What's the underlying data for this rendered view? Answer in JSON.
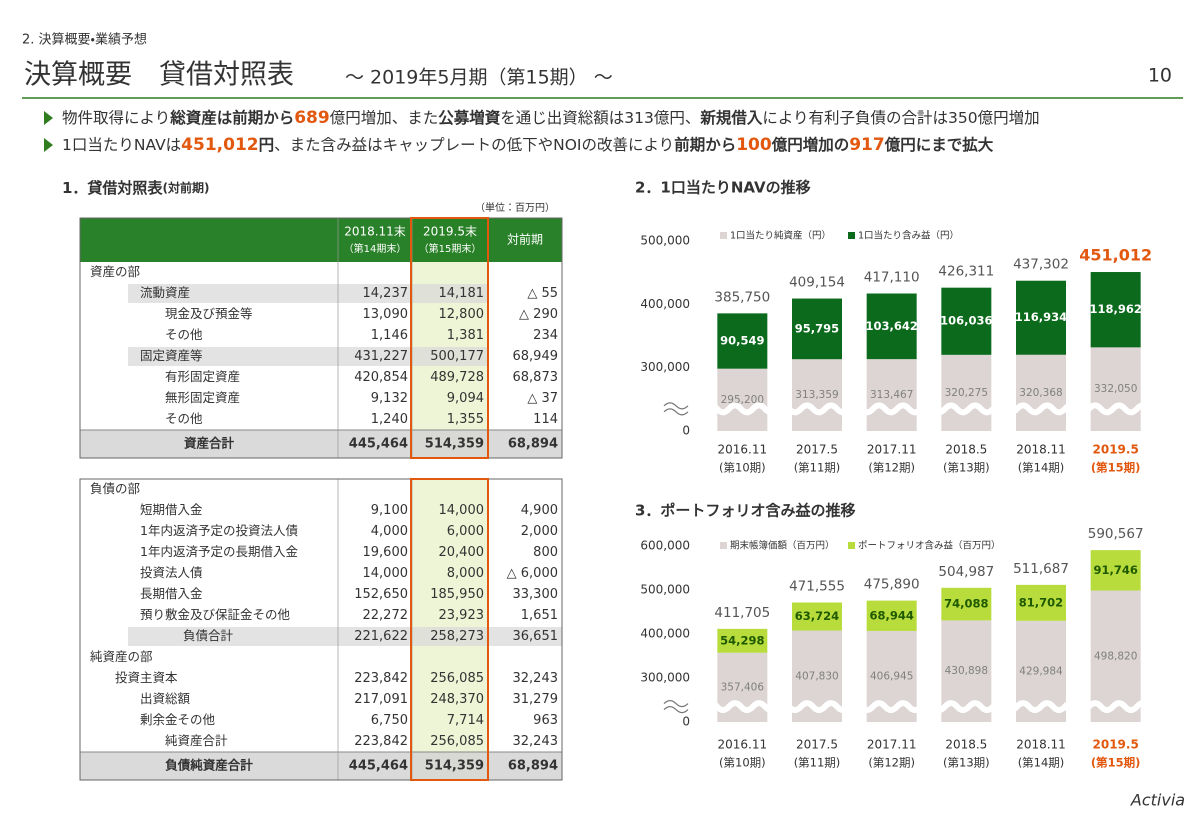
{
  "header": {
    "section": "2. 決算概要・業績予想",
    "title": "決算概要　貸借対照表",
    "subtitle": "～ 2019年5月期（第15期） ～",
    "page": "10"
  },
  "bullets": [
    [
      {
        "text": "物件取得により",
        "style": "normal"
      },
      {
        "text": "総資産は前期から",
        "style": "bold"
      },
      {
        "text": "689",
        "style": "accent"
      },
      {
        "text": "億円増加、また",
        "style": "normal"
      },
      {
        "text": "公募増資",
        "style": "bold"
      },
      {
        "text": "を通じ出資総額は313億円、",
        "style": "normal"
      },
      {
        "text": "新規借入",
        "style": "bold"
      },
      {
        "text": "により有利子負債の合計は350億円増加",
        "style": "normal"
      }
    ],
    [
      {
        "text": "1口当たりNAVは",
        "style": "normal"
      },
      {
        "text": "451,012",
        "style": "accent"
      },
      {
        "text": "円",
        "style": "bold"
      },
      {
        "text": "、また含み益はキャップレートの低下やNOIの改善により",
        "style": "normal"
      },
      {
        "text": "前期から",
        "style": "bold"
      },
      {
        "text": "100",
        "style": "accent"
      },
      {
        "text": "億円増加の",
        "style": "bold"
      },
      {
        "text": "917",
        "style": "accent"
      },
      {
        "text": "億円にまで拡大",
        "style": "bold"
      }
    ]
  ],
  "table": {
    "title": "1．貸借対照表",
    "title_note": "(対前期)",
    "unit": "（単位：百万円）",
    "columns": [
      [
        "2018.11末",
        "（第14期末）"
      ],
      [
        "2019.5末",
        "（第15期末）"
      ],
      [
        "対前期"
      ]
    ],
    "blocks": [
      [
        {
          "label": "資産の部",
          "level": 0,
          "style": "section"
        },
        {
          "label": "流動資産",
          "level": 2,
          "style": "shade",
          "cells": [
            "14,237",
            "14,181",
            "△ 55"
          ]
        },
        {
          "label": "現金及び預金等",
          "level": 3,
          "style": "plain",
          "cells": [
            "13,090",
            "12,800",
            "△ 290"
          ]
        },
        {
          "label": "その他",
          "level": 3,
          "style": "plain",
          "cells": [
            "1,146",
            "1,381",
            "234"
          ]
        },
        {
          "label": "固定資産等",
          "level": 2,
          "style": "shade",
          "cells": [
            "431,227",
            "500,177",
            "68,949"
          ]
        },
        {
          "label": "有形固定資産",
          "level": 3,
          "style": "plain",
          "cells": [
            "420,854",
            "489,728",
            "68,873"
          ]
        },
        {
          "label": "無形固定資産",
          "level": 3,
          "style": "plain",
          "cells": [
            "9,132",
            "9,094",
            "△ 37"
          ]
        },
        {
          "label": "その他",
          "level": 3,
          "style": "plain",
          "cells": [
            "1,240",
            "1,355",
            "114"
          ]
        },
        {
          "label": "資産合計",
          "level": 0,
          "style": "total",
          "cells": [
            "445,464",
            "514,359",
            "68,894"
          ]
        }
      ],
      [
        {
          "label": "負債の部",
          "level": 0,
          "style": "section"
        },
        {
          "label": "短期借入金",
          "level": 2,
          "style": "plain",
          "cells": [
            "9,100",
            "14,000",
            "4,900"
          ]
        },
        {
          "label": "1年内返済予定の投資法人債",
          "level": 2,
          "style": "plain",
          "cells": [
            "4,000",
            "6,000",
            "2,000"
          ]
        },
        {
          "label": "1年内返済予定の長期借入金",
          "level": 2,
          "style": "plain",
          "cells": [
            "19,600",
            "20,400",
            "800"
          ]
        },
        {
          "label": "投資法人債",
          "level": 2,
          "style": "plain",
          "cells": [
            "14,000",
            "8,000",
            "△ 6,000"
          ]
        },
        {
          "label": "長期借入金",
          "level": 2,
          "style": "plain",
          "cells": [
            "152,650",
            "185,950",
            "33,300"
          ]
        },
        {
          "label": "預り敷金及び保証金その他",
          "level": 2,
          "style": "plain",
          "cells": [
            "22,272",
            "23,923",
            "1,651"
          ]
        },
        {
          "label": "負債合計",
          "level": 3,
          "style": "subtotal",
          "cells": [
            "221,622",
            "258,273",
            "36,651"
          ]
        },
        {
          "label": "純資産の部",
          "level": 0,
          "style": "section"
        },
        {
          "label": "投資主資本",
          "level": 1,
          "style": "plain",
          "cells": [
            "223,842",
            "256,085",
            "32,243"
          ]
        },
        {
          "label": "出資総額",
          "level": 2,
          "style": "plain",
          "cells": [
            "217,091",
            "248,370",
            "31,279"
          ]
        },
        {
          "label": "剰余金その他",
          "level": 2,
          "style": "plain",
          "cells": [
            "6,750",
            "7,714",
            "963"
          ]
        },
        {
          "label": "純資産合計",
          "level": 3,
          "style": "plain",
          "cells": [
            "223,842",
            "256,085",
            "32,243"
          ]
        },
        {
          "label": "負債純資産合計",
          "level": 0,
          "style": "total",
          "cells": [
            "445,464",
            "514,359",
            "68,894"
          ]
        }
      ]
    ]
  },
  "chart_data": [
    {
      "type": "bar",
      "stacked": true,
      "title": "2．1口当たりNAVの推移",
      "categories": [
        "2016.11",
        "2017.5",
        "2017.11",
        "2018.5",
        "2018.11",
        "2019.5"
      ],
      "category_sublabels": [
        "(第10期)",
        "(第11期)",
        "(第12期)",
        "(第13期)",
        "(第14期)",
        "(第15期)"
      ],
      "category_colors": [
        "#333333",
        "#333333",
        "#333333",
        "#333333",
        "#333333",
        "#e2580f"
      ],
      "series": [
        {
          "name": "1口当たり純資産（円）",
          "color": "#dcd5d3",
          "label_color": "#808080",
          "values": [
            295200,
            313359,
            313467,
            320275,
            320368,
            332050
          ],
          "value_labels": [
            "295,200",
            "313,359",
            "313,467",
            "320,275",
            "320,368",
            "332,050"
          ]
        },
        {
          "name": "1口当たり含み益（円）",
          "color": "#0b6a1c",
          "label_color": "#ffffff",
          "values": [
            90549,
            95795,
            103642,
            106036,
            116934,
            118962
          ],
          "value_labels": [
            "90,549",
            "95,795",
            "103,642",
            "106,036",
            "116,934",
            "118,962"
          ]
        }
      ],
      "totals": [
        385750,
        409154,
        417110,
        426311,
        437302,
        451012
      ],
      "total_labels": [
        "385,750",
        "409,154",
        "417,110",
        "426,311",
        "437,302",
        "451,012"
      ],
      "total_colors": [
        "#555555",
        "#555555",
        "#555555",
        "#555555",
        "#555555",
        "#e2580f"
      ],
      "ylim": [
        0,
        500000
      ],
      "yticks": [
        {
          "value": 0,
          "label": "0"
        },
        {
          "value": 300000,
          "label": "300,000"
        },
        {
          "value": 400000,
          "label": "400,000"
        },
        {
          "value": 500000,
          "label": "500,000"
        }
      ],
      "axis_break": true,
      "grid": false
    },
    {
      "type": "bar",
      "stacked": true,
      "title": "3．ポートフォリオ含み益の推移",
      "categories": [
        "2016.11",
        "2017.5",
        "2017.11",
        "2018.5",
        "2018.11",
        "2019.5"
      ],
      "category_sublabels": [
        "(第10期)",
        "(第11期)",
        "(第12期)",
        "(第13期)",
        "(第14期)",
        "(第15期)"
      ],
      "category_colors": [
        "#333333",
        "#333333",
        "#333333",
        "#333333",
        "#333333",
        "#e2580f"
      ],
      "series": [
        {
          "name": "期末帳簿価額（百万円）",
          "color": "#dcd5d3",
          "label_color": "#808080",
          "values": [
            357406,
            407830,
            406945,
            430898,
            429984,
            498820
          ],
          "value_labels": [
            "357,406",
            "407,830",
            "406,945",
            "430,898",
            "429,984",
            "498,820"
          ]
        },
        {
          "name": "ポートフォリオ含み益（百万円）",
          "color": "#b7dc3c",
          "label_color": "#1f5a00",
          "values": [
            54298,
            63724,
            68944,
            74088,
            81702,
            91746
          ],
          "value_labels": [
            "54,298",
            "63,724",
            "68,944",
            "74,088",
            "81,702",
            "91,746"
          ]
        }
      ],
      "totals": [
        411705,
        471555,
        475890,
        504987,
        511687,
        590567
      ],
      "total_labels": [
        "411,705",
        "471,555",
        "475,890",
        "504,987",
        "511,687",
        "590,567"
      ],
      "total_colors": [
        "#555555",
        "#555555",
        "#555555",
        "#555555",
        "#555555",
        "#555555"
      ],
      "ylim": [
        0,
        600000
      ],
      "yticks": [
        {
          "value": 0,
          "label": "0"
        },
        {
          "value": 300000,
          "label": "300,000"
        },
        {
          "value": 400000,
          "label": "400,000"
        },
        {
          "value": 500000,
          "label": "500,000"
        },
        {
          "value": 600000,
          "label": "600,000"
        }
      ],
      "axis_break": true,
      "grid": false
    }
  ],
  "logo": "Activia"
}
